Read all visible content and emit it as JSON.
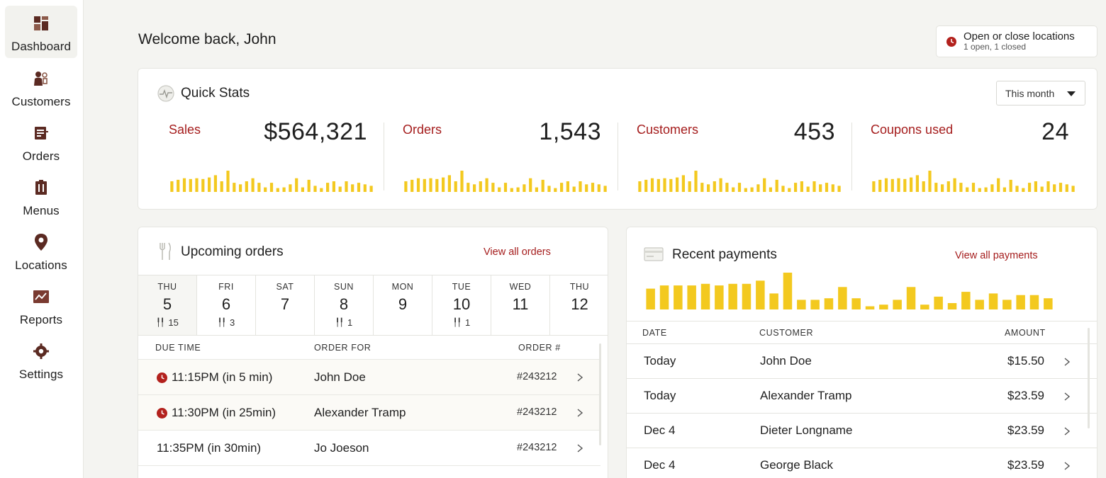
{
  "nav": {
    "items": [
      {
        "label": "Dashboard",
        "icon": "dashboard-icon",
        "active": true
      },
      {
        "label": "Customers",
        "icon": "customers-icon"
      },
      {
        "label": "Orders",
        "icon": "orders-icon"
      },
      {
        "label": "Menus",
        "icon": "menus-icon"
      },
      {
        "label": "Locations",
        "icon": "location-pin-icon"
      },
      {
        "label": "Reports",
        "icon": "reports-icon"
      },
      {
        "label": "Settings",
        "icon": "settings-icon"
      }
    ]
  },
  "header": {
    "welcome": "Welcome back, John",
    "locations_title": "Open or close locations",
    "locations_status": "1 open, 1 closed"
  },
  "quick_stats": {
    "title": "Quick Stats",
    "range": "This month",
    "stats": [
      {
        "label": "Sales",
        "value": "$564,321"
      },
      {
        "label": "Orders",
        "value": "1,543"
      },
      {
        "label": "Customers",
        "value": "453"
      },
      {
        "label": "Coupons used",
        "value": "24"
      }
    ],
    "spark_values": [
      14,
      16,
      18,
      17,
      18,
      17,
      19,
      22,
      14,
      28,
      12,
      10,
      14,
      18,
      12,
      6,
      12,
      5,
      6,
      10,
      18,
      6,
      16,
      8,
      5,
      12,
      14,
      7,
      14,
      10,
      12,
      10,
      8
    ],
    "colors": {
      "label": "#a51d1d",
      "bar": "#f3c91f"
    }
  },
  "upcoming_orders": {
    "title": "Upcoming orders",
    "view_all": "View all orders",
    "calendar": [
      {
        "dow": "THU",
        "day": "5",
        "count": "15"
      },
      {
        "dow": "FRI",
        "day": "6",
        "count": "3"
      },
      {
        "dow": "SAT",
        "day": "7",
        "count": ""
      },
      {
        "dow": "SUN",
        "day": "8",
        "count": "1"
      },
      {
        "dow": "MON",
        "day": "9",
        "count": ""
      },
      {
        "dow": "TUE",
        "day": "10",
        "count": "1"
      },
      {
        "dow": "WED",
        "day": "11",
        "count": ""
      },
      {
        "dow": "THU",
        "day": "12",
        "count": ""
      }
    ],
    "columns": {
      "due": "DUE TIME",
      "for": "ORDER FOR",
      "num": "ORDER #"
    },
    "rows": [
      {
        "due": "11:15PM (in 5 min)",
        "customer": "John Doe",
        "order": "#243212",
        "urgent": true
      },
      {
        "due": "11:30PM (in 25min)",
        "customer": "Alexander Tramp",
        "order": "#243212",
        "urgent": true
      },
      {
        "due": "11:35PM (in 30min)",
        "customer": "Jo Joeson",
        "order": "#243212",
        "urgent": false
      }
    ]
  },
  "recent_payments": {
    "title": "Recent payments",
    "view_all": "View all payments",
    "bar_values": [
      26,
      30,
      30,
      30,
      32,
      30,
      32,
      32,
      36,
      20,
      46,
      12,
      12,
      14,
      28,
      14,
      4,
      6,
      12,
      28,
      6,
      16,
      8,
      22,
      12,
      20,
      12,
      18,
      18,
      14
    ],
    "columns": {
      "date": "DATE",
      "customer": "CUSTOMER",
      "amount": "AMOUNT"
    },
    "rows": [
      {
        "date": "Today",
        "customer": "John Doe",
        "amount": "$15.50"
      },
      {
        "date": "Today",
        "customer": "Alexander Tramp",
        "amount": "$23.59"
      },
      {
        "date": "Dec 4",
        "customer": "Dieter Longname",
        "amount": "$23.59"
      },
      {
        "date": "Dec 4",
        "customer": "George Black",
        "amount": "$23.59"
      }
    ]
  }
}
